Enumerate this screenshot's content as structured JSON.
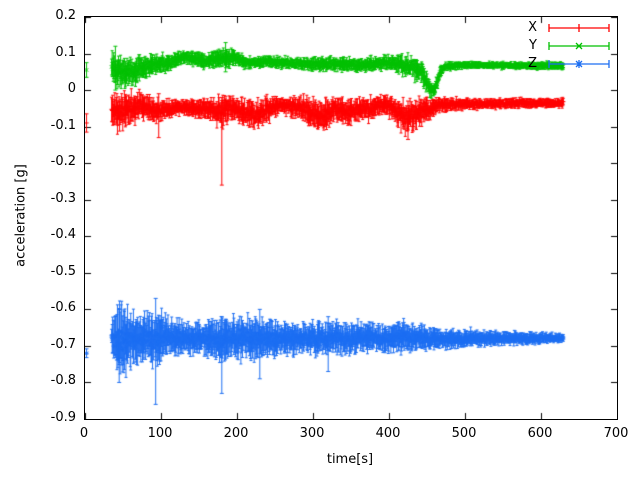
{
  "chart_data": {
    "type": "line",
    "subtype": "errorbars",
    "title": "",
    "xlabel": "time[s]",
    "ylabel": "acceleration [g]",
    "xlim": [
      0,
      700
    ],
    "ylim": [
      -0.9,
      0.2
    ],
    "grid": false,
    "legend_position": "top-right",
    "xtick_values": [
      0,
      100,
      200,
      300,
      400,
      500,
      600,
      700
    ],
    "xtick_labels": [
      "0",
      "100",
      "200",
      "300",
      "400",
      "500",
      "600",
      "700"
    ],
    "ytick_values": [
      0.2,
      0.1,
      0,
      -0.1,
      -0.2,
      -0.3,
      -0.4,
      -0.5,
      -0.6,
      -0.7,
      -0.8,
      -0.9
    ],
    "ytick_labels": [
      "0.2",
      "0.1",
      "0",
      "-0.1",
      "-0.2",
      "-0.3",
      "-0.4",
      "-0.5",
      "-0.6",
      "-0.7",
      "-0.8",
      "-0.9"
    ],
    "sample_dt": 0.7,
    "series": [
      {
        "name": "X",
        "color": "#ff0000",
        "marker": "plus",
        "seed": 11,
        "start_point": {
          "x": 2,
          "y": -0.09,
          "err": 0.025
        },
        "envelope": [
          [
            35,
            -0.055,
            0.045
          ],
          [
            45,
            -0.06,
            0.05
          ],
          [
            60,
            -0.05,
            0.04
          ],
          [
            75,
            -0.04,
            0.035
          ],
          [
            90,
            -0.055,
            0.03
          ],
          [
            110,
            -0.05,
            0.025
          ],
          [
            130,
            -0.045,
            0.02
          ],
          [
            150,
            -0.05,
            0.025
          ],
          [
            170,
            -0.055,
            0.03
          ],
          [
            180,
            -0.06,
            0.05
          ],
          [
            190,
            -0.05,
            0.03
          ],
          [
            210,
            -0.06,
            0.035
          ],
          [
            225,
            -0.07,
            0.04
          ],
          [
            240,
            -0.055,
            0.035
          ],
          [
            255,
            -0.04,
            0.02
          ],
          [
            270,
            -0.045,
            0.025
          ],
          [
            285,
            -0.05,
            0.03
          ],
          [
            300,
            -0.065,
            0.04
          ],
          [
            315,
            -0.07,
            0.04
          ],
          [
            330,
            -0.05,
            0.03
          ],
          [
            345,
            -0.06,
            0.035
          ],
          [
            360,
            -0.055,
            0.03
          ],
          [
            375,
            -0.05,
            0.03
          ],
          [
            390,
            -0.04,
            0.025
          ],
          [
            405,
            -0.05,
            0.03
          ],
          [
            420,
            -0.075,
            0.045
          ],
          [
            435,
            -0.065,
            0.04
          ],
          [
            450,
            -0.055,
            0.03
          ],
          [
            465,
            -0.04,
            0.02
          ],
          [
            480,
            -0.04,
            0.018
          ],
          [
            500,
            -0.038,
            0.015
          ],
          [
            530,
            -0.037,
            0.014
          ],
          [
            560,
            -0.036,
            0.013
          ],
          [
            600,
            -0.036,
            0.013
          ],
          [
            630,
            -0.035,
            0.012
          ]
        ],
        "spikes": [
          [
            180,
            -0.26,
            -0.02
          ],
          [
            97,
            -0.13,
            -0.01
          ],
          [
            425,
            -0.135,
            -0.03
          ]
        ]
      },
      {
        "name": "Y",
        "color": "#00c000",
        "marker": "times",
        "seed": 22,
        "start_point": {
          "x": 2,
          "y": 0.055,
          "err": 0.02
        },
        "envelope": [
          [
            35,
            0.07,
            0.045
          ],
          [
            45,
            0.055,
            0.045
          ],
          [
            55,
            0.045,
            0.04
          ],
          [
            65,
            0.055,
            0.035
          ],
          [
            80,
            0.065,
            0.03
          ],
          [
            95,
            0.07,
            0.025
          ],
          [
            110,
            0.075,
            0.02
          ],
          [
            130,
            0.09,
            0.018
          ],
          [
            145,
            0.085,
            0.02
          ],
          [
            160,
            0.08,
            0.02
          ],
          [
            175,
            0.085,
            0.022
          ],
          [
            190,
            0.09,
            0.025
          ],
          [
            205,
            0.08,
            0.018
          ],
          [
            220,
            0.075,
            0.015
          ],
          [
            240,
            0.078,
            0.015
          ],
          [
            260,
            0.075,
            0.015
          ],
          [
            280,
            0.072,
            0.015
          ],
          [
            300,
            0.07,
            0.018
          ],
          [
            320,
            0.072,
            0.018
          ],
          [
            340,
            0.07,
            0.018
          ],
          [
            360,
            0.068,
            0.018
          ],
          [
            380,
            0.072,
            0.018
          ],
          [
            400,
            0.075,
            0.02
          ],
          [
            415,
            0.07,
            0.025
          ],
          [
            430,
            0.065,
            0.03
          ],
          [
            445,
            0.04,
            0.03
          ],
          [
            452,
            0.01,
            0.025
          ],
          [
            458,
            -0.005,
            0.02
          ],
          [
            463,
            0.02,
            0.02
          ],
          [
            468,
            0.055,
            0.015
          ],
          [
            475,
            0.065,
            0.012
          ],
          [
            490,
            0.068,
            0.01
          ],
          [
            520,
            0.068,
            0.01
          ],
          [
            560,
            0.067,
            0.01
          ],
          [
            600,
            0.067,
            0.01
          ],
          [
            630,
            0.067,
            0.01
          ]
        ],
        "spikes": [
          [
            185,
            0.05,
            0.13
          ],
          [
            40,
            0.0,
            0.12
          ]
        ]
      },
      {
        "name": "Z",
        "color": "#1c6ef2",
        "marker": "star",
        "seed": 33,
        "start_point": {
          "x": 2,
          "y": -0.72,
          "err": 0.012
        },
        "envelope": [
          [
            35,
            -0.68,
            0.05
          ],
          [
            42,
            -0.69,
            0.08
          ],
          [
            50,
            -0.685,
            0.09
          ],
          [
            58,
            -0.68,
            0.08
          ],
          [
            66,
            -0.685,
            0.075
          ],
          [
            75,
            -0.68,
            0.065
          ],
          [
            85,
            -0.68,
            0.06
          ],
          [
            95,
            -0.685,
            0.08
          ],
          [
            105,
            -0.68,
            0.055
          ],
          [
            120,
            -0.68,
            0.045
          ],
          [
            140,
            -0.678,
            0.04
          ],
          [
            160,
            -0.68,
            0.045
          ],
          [
            180,
            -0.683,
            0.06
          ],
          [
            195,
            -0.675,
            0.05
          ],
          [
            210,
            -0.68,
            0.055
          ],
          [
            225,
            -0.682,
            0.055
          ],
          [
            240,
            -0.68,
            0.05
          ],
          [
            260,
            -0.678,
            0.042
          ],
          [
            280,
            -0.68,
            0.04
          ],
          [
            300,
            -0.678,
            0.042
          ],
          [
            315,
            -0.682,
            0.048
          ],
          [
            330,
            -0.676,
            0.04
          ],
          [
            345,
            -0.678,
            0.042
          ],
          [
            360,
            -0.68,
            0.04
          ],
          [
            375,
            -0.676,
            0.038
          ],
          [
            390,
            -0.68,
            0.036
          ],
          [
            405,
            -0.678,
            0.038
          ],
          [
            420,
            -0.674,
            0.04
          ],
          [
            435,
            -0.678,
            0.034
          ],
          [
            450,
            -0.68,
            0.03
          ],
          [
            465,
            -0.68,
            0.028
          ],
          [
            480,
            -0.68,
            0.026
          ],
          [
            500,
            -0.68,
            0.024
          ],
          [
            520,
            -0.68,
            0.02
          ],
          [
            545,
            -0.68,
            0.018
          ],
          [
            570,
            -0.679,
            0.016
          ],
          [
            600,
            -0.679,
            0.014
          ],
          [
            630,
            -0.678,
            0.012
          ]
        ],
        "spikes": [
          [
            45,
            -0.8,
            -0.6
          ],
          [
            93,
            -0.86,
            -0.57
          ],
          [
            180,
            -0.83,
            -0.62
          ],
          [
            230,
            -0.79,
            -0.6
          ],
          [
            320,
            -0.77,
            -0.62
          ]
        ]
      }
    ]
  }
}
